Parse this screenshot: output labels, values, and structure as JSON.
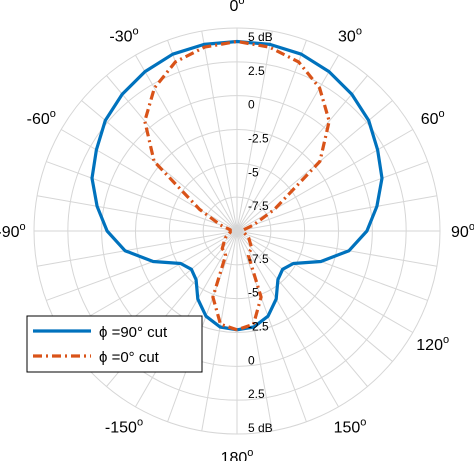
{
  "chart_data": {
    "type": "polar-line",
    "title": "",
    "angle_axis": {
      "unit_suffix": "o",
      "labels": [
        {
          "angle": 0,
          "text": "0"
        },
        {
          "angle": 30,
          "text": "30"
        },
        {
          "angle": 60,
          "text": "60"
        },
        {
          "angle": 90,
          "text": "90"
        },
        {
          "angle": 120,
          "text": "120"
        },
        {
          "angle": 150,
          "text": "150"
        },
        {
          "angle": 180,
          "text": "180"
        },
        {
          "angle": -150,
          "text": "-150"
        },
        {
          "angle": -90,
          "text": "-90"
        },
        {
          "angle": -60,
          "text": "-60"
        },
        {
          "angle": -30,
          "text": "-30"
        }
      ],
      "grid_step_deg": 10,
      "zero_direction": "top",
      "direction": "clockwise"
    },
    "radial_axis": {
      "min": -10,
      "max": 5,
      "unit": "dB",
      "grid_values": [
        -10,
        -7.5,
        -5,
        -2.5,
        0,
        2.5,
        5
      ],
      "tick_labels_upper": [
        "5 dB",
        "2.5",
        "0",
        "-2.5",
        "-5",
        "-7.5"
      ],
      "tick_labels_lower": [
        "-7.5",
        "-5",
        "-2.5",
        "0",
        "2.5",
        "5 dB"
      ]
    },
    "grid": true,
    "legend": {
      "placement": "bottom-left",
      "entries": [
        "ϕ =90° cut",
        "ϕ =0° cut"
      ]
    },
    "series": [
      {
        "name": "ϕ =90° cut",
        "color": "#0072BD",
        "dash": "solid",
        "points": [
          [
            -180,
            -2.7
          ],
          [
            -170,
            -2.8
          ],
          [
            -160,
            -3.3
          ],
          [
            -150,
            -4.2
          ],
          [
            -140,
            -5.3
          ],
          [
            -130,
            -5.6
          ],
          [
            -120,
            -5.2
          ],
          [
            -110,
            -3.4
          ],
          [
            -100,
            -1.6
          ],
          [
            -90,
            -0.4
          ],
          [
            -80,
            0.5
          ],
          [
            -70,
            1.4
          ],
          [
            -60,
            2.0
          ],
          [
            -50,
            2.7
          ],
          [
            -40,
            3.2
          ],
          [
            -30,
            3.6
          ],
          [
            -20,
            3.9
          ],
          [
            -10,
            4.0
          ],
          [
            0,
            4.0
          ],
          [
            10,
            4.0
          ],
          [
            20,
            3.9
          ],
          [
            30,
            3.6
          ],
          [
            40,
            3.2
          ],
          [
            50,
            2.7
          ],
          [
            60,
            2.0
          ],
          [
            70,
            1.4
          ],
          [
            80,
            0.5
          ],
          [
            90,
            -0.4
          ],
          [
            100,
            -1.6
          ],
          [
            110,
            -3.4
          ],
          [
            120,
            -5.2
          ],
          [
            130,
            -5.6
          ],
          [
            140,
            -5.3
          ],
          [
            150,
            -4.2
          ],
          [
            160,
            -3.3
          ],
          [
            170,
            -2.8
          ],
          [
            180,
            -2.7
          ]
        ]
      },
      {
        "name": "ϕ =0° cut",
        "color": "#D95319",
        "dash": "dash-dot",
        "points": [
          [
            -180,
            -2.7
          ],
          [
            -170,
            -3.0
          ],
          [
            -160,
            -4.8
          ],
          [
            -155,
            -8.0
          ],
          [
            -150,
            -8.2
          ],
          [
            -140,
            -8.3
          ],
          [
            -120,
            -9.0
          ],
          [
            -100,
            -9.5
          ],
          [
            -90,
            -9.5
          ],
          [
            -80,
            -9.5
          ],
          [
            -70,
            -8.7
          ],
          [
            -60,
            -6.8
          ],
          [
            -50,
            -2.0
          ],
          [
            -40,
            0.6
          ],
          [
            -30,
            2.2
          ],
          [
            -20,
            3.3
          ],
          [
            -10,
            3.8
          ],
          [
            0,
            4.0
          ],
          [
            10,
            3.8
          ],
          [
            20,
            3.3
          ],
          [
            30,
            2.2
          ],
          [
            40,
            0.6
          ],
          [
            50,
            -2.0
          ],
          [
            60,
            -6.8
          ],
          [
            70,
            -8.7
          ],
          [
            80,
            -9.5
          ],
          [
            90,
            -9.5
          ],
          [
            100,
            -9.5
          ],
          [
            120,
            -9.0
          ],
          [
            140,
            -8.3
          ],
          [
            150,
            -8.2
          ],
          [
            155,
            -8.0
          ],
          [
            160,
            -4.8
          ],
          [
            170,
            -3.0
          ],
          [
            180,
            -2.7
          ]
        ]
      }
    ]
  }
}
